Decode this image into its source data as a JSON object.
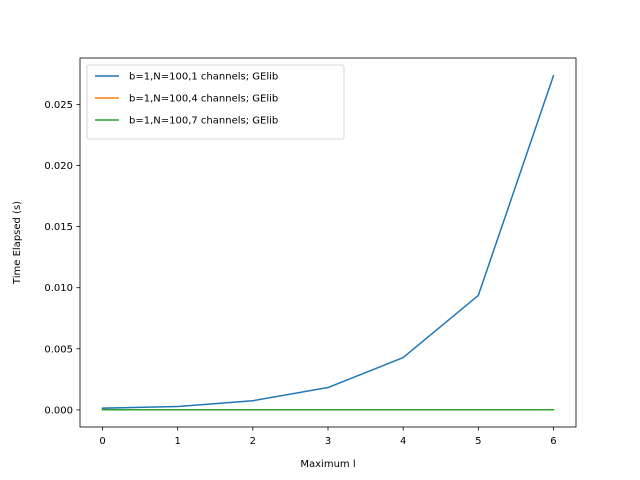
{
  "chart_data": {
    "type": "line",
    "title": "",
    "xlabel": "Maximum l",
    "ylabel": "Time Elapsed (s)",
    "xlim": [
      -0.3,
      6.3
    ],
    "ylim": [
      -0.0014,
      0.0288
    ],
    "grid": false,
    "legend_position": "top-left",
    "x_ticks": [
      0,
      1,
      2,
      3,
      4,
      5,
      6
    ],
    "x_tick_labels": [
      "0",
      "1",
      "2",
      "3",
      "4",
      "5",
      "6"
    ],
    "y_ticks": [
      0.0,
      0.005,
      0.01,
      0.015,
      0.02,
      0.025
    ],
    "y_tick_labels": [
      "0.000",
      "0.005",
      "0.010",
      "0.015",
      "0.020",
      "0.025"
    ],
    "x": [
      0,
      1,
      2,
      3,
      4,
      5,
      6
    ],
    "series": [
      {
        "name": "b=1,N=100,1 channels; GElib",
        "color": "#1f77b4",
        "values": [
          0.00014,
          0.00028,
          0.00075,
          0.00183,
          0.00428,
          0.00937,
          0.02735
        ]
      },
      {
        "name": "b=1,N=100,4 channels; GElib",
        "color": "#ff7f0e",
        "values": [
          1e-05,
          1e-05,
          1e-05,
          1e-05,
          1e-05,
          1e-05,
          1e-05
        ]
      },
      {
        "name": "b=1,N=100,7 channels; GElib",
        "color": "#2ca02c",
        "values": [
          1e-05,
          1e-05,
          1e-05,
          1e-05,
          1e-05,
          1e-05,
          1e-05
        ]
      }
    ]
  }
}
